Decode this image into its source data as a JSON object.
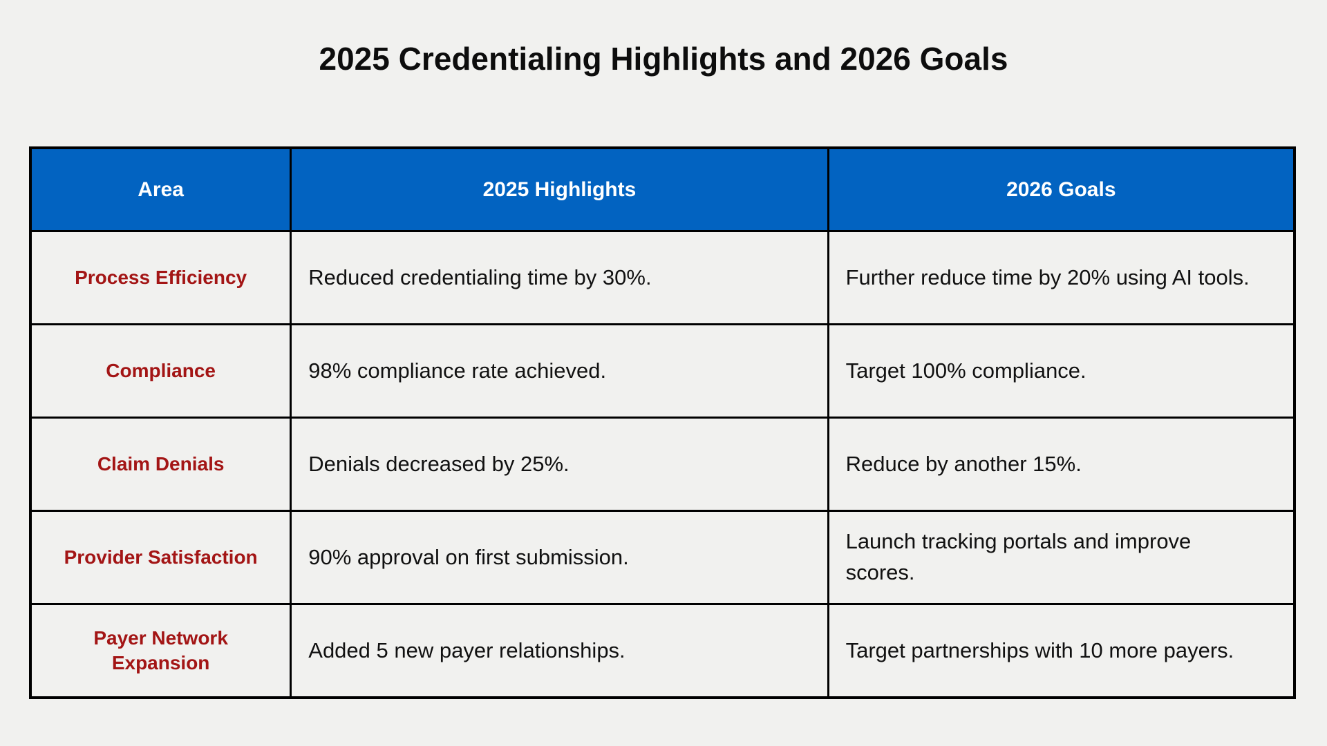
{
  "page": {
    "title": "2025 Credentialing Highlights and 2026 Goals"
  },
  "colors": {
    "background": "#f1f1ef",
    "header_bg": "#0263c1",
    "header_text": "#ffffff",
    "area_text": "#a31515",
    "body_text": "#111111",
    "border": "#000000"
  },
  "table": {
    "columns": [
      {
        "label": "Area"
      },
      {
        "label": "2025 Highlights"
      },
      {
        "label": "2026 Goals"
      }
    ],
    "rows": [
      {
        "area": "Process Efficiency",
        "highlights": "Reduced credentialing time by 30%.",
        "goals": "Further reduce time by 20% using AI tools."
      },
      {
        "area": "Compliance",
        "highlights": "98% compliance rate achieved.",
        "goals": "Target 100% compliance."
      },
      {
        "area": "Claim Denials",
        "highlights": "Denials decreased by 25%.",
        "goals": "Reduce by another 15%."
      },
      {
        "area": "Provider Satisfaction",
        "highlights": "90% approval on first submission.",
        "goals": "Launch tracking portals and improve scores."
      },
      {
        "area": "Payer Network Expansion",
        "highlights": "Added 5 new payer relationships.",
        "goals": "Target partnerships with 10 more payers."
      }
    ]
  }
}
